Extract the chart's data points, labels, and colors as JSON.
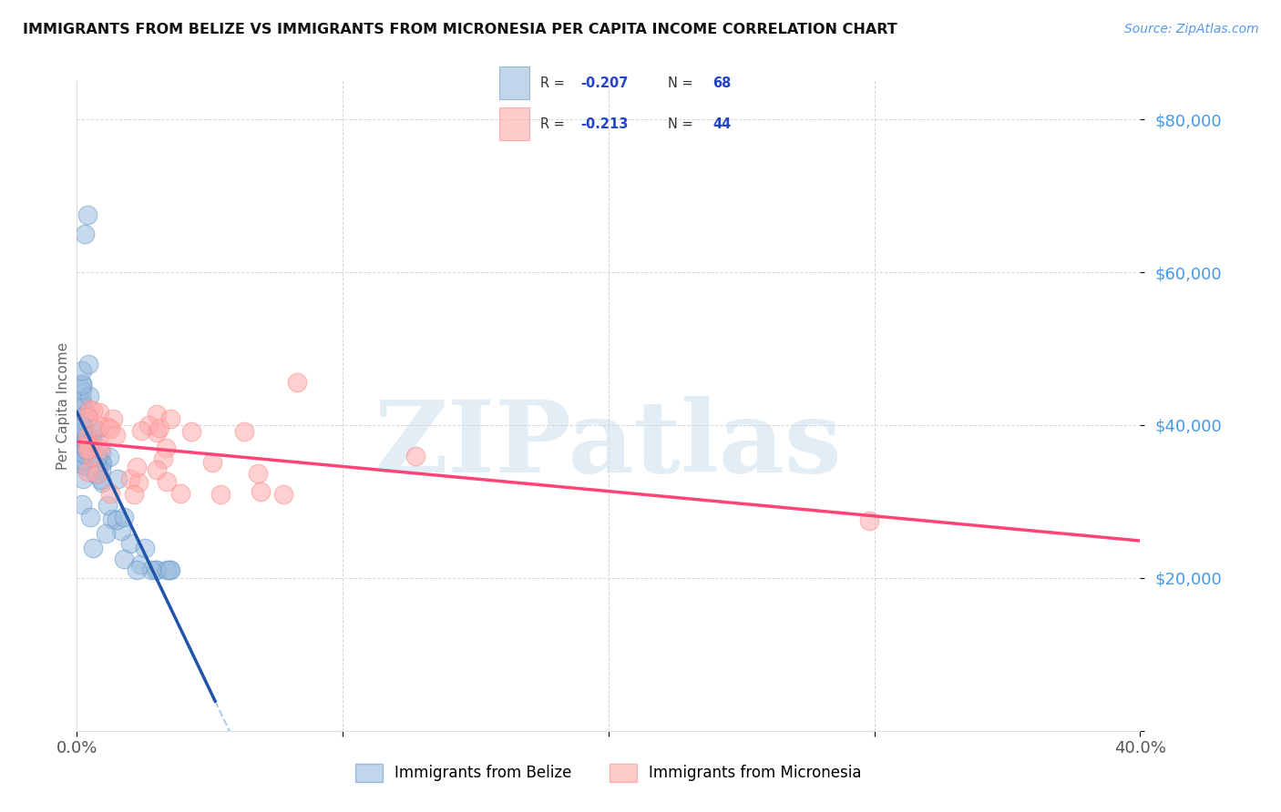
{
  "title": "IMMIGRANTS FROM BELIZE VS IMMIGRANTS FROM MICRONESIA PER CAPITA INCOME CORRELATION CHART",
  "source": "Source: ZipAtlas.com",
  "ylabel": "Per Capita Income",
  "xlim": [
    0.0,
    0.4
  ],
  "ylim": [
    0,
    85000
  ],
  "belize_color": "#99BBDD",
  "belize_edge_color": "#6699CC",
  "micronesia_color": "#FFAAAA",
  "micronesia_edge_color": "#FF8888",
  "belize_line_color": "#2255AA",
  "micronesia_line_color": "#FF4477",
  "dashed_line_color": "#AACCEE",
  "background_color": "#FFFFFF",
  "grid_color": "#CCCCCC",
  "ytick_color": "#4499EE",
  "title_color": "#111111",
  "source_color": "#5599EE",
  "watermark_text": "ZIPatlas",
  "legend_belize_R": "-0.207",
  "legend_belize_N": "68",
  "legend_micro_R": "-0.213",
  "legend_micro_N": "44",
  "legend_label_belize": "Immigrants from Belize",
  "legend_label_micro": "Immigrants from Micronesia"
}
